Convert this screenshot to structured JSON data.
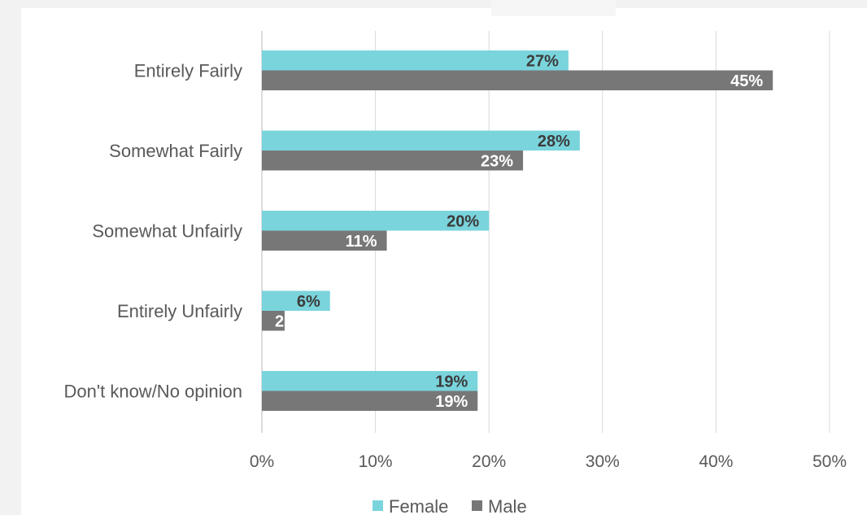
{
  "chart_data": {
    "type": "bar",
    "orientation": "horizontal",
    "categories": [
      "Entirely Fairly",
      "Somewhat Fairly",
      "Somewhat Unfairly",
      "Entirely Unfairly",
      "Don't know/No opinion"
    ],
    "series": [
      {
        "name": "Female",
        "color": "#7ad4dc",
        "values": [
          27,
          28,
          20,
          6,
          19
        ],
        "labels": [
          "27%",
          "28%",
          "20%",
          "6%",
          "19%"
        ],
        "label_color": "#3b3b3b"
      },
      {
        "name": "Male",
        "color": "#777777",
        "values": [
          45,
          23,
          11,
          2,
          19
        ],
        "labels": [
          "45%",
          "23%",
          "11%",
          "2",
          "19%"
        ],
        "label_color": "#ffffff"
      }
    ],
    "xlim": [
      0,
      50
    ],
    "xticks": [
      0,
      10,
      20,
      30,
      40,
      50
    ],
    "xtick_labels": [
      "0%",
      "10%",
      "20%",
      "30%",
      "40%",
      "50%"
    ],
    "grid": true,
    "legend": "bottom",
    "title": "",
    "xlabel": "",
    "ylabel": ""
  }
}
